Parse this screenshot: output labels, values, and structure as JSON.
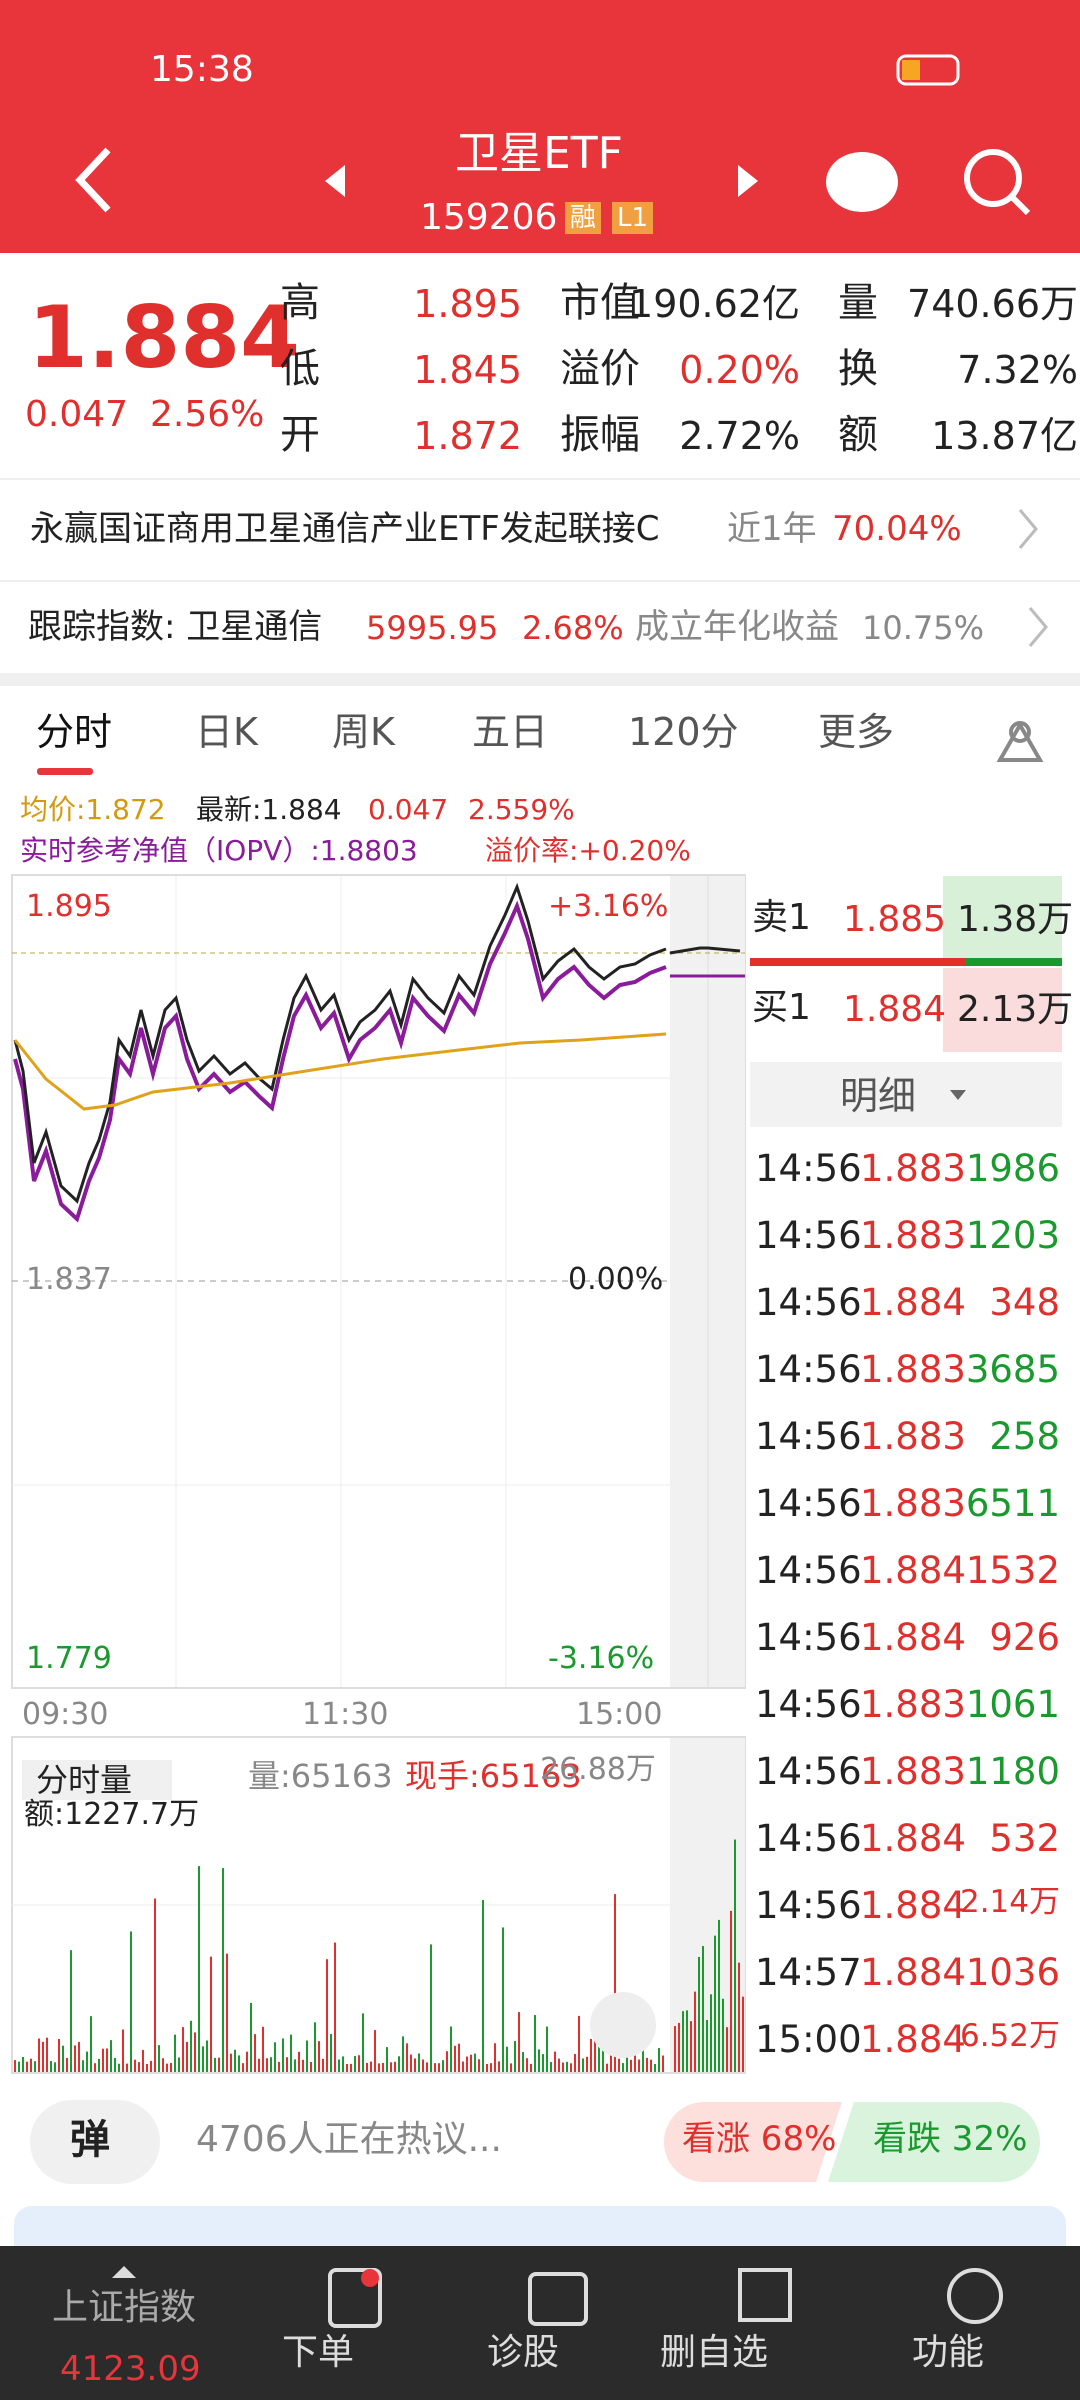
{
  "status_bar": {
    "time": "15:38"
  },
  "header": {
    "title": "卫星ETF",
    "code": "159206",
    "badges": [
      "融",
      "L1"
    ]
  },
  "quote": {
    "price": "1.884",
    "change": "0.047",
    "change_pct": "2.56%",
    "stats": [
      [
        "高",
        "1.895"
      ],
      [
        "低",
        "1.845"
      ],
      [
        "开",
        "1.872"
      ],
      [
        "市值",
        "190.62亿"
      ],
      [
        "溢价",
        "0.20%"
      ],
      [
        "振幅",
        "2.72%"
      ],
      [
        "量",
        "740.66万"
      ],
      [
        "换",
        "7.32%"
      ],
      [
        "额",
        "13.87亿"
      ]
    ]
  },
  "linked_fund": {
    "name": "永赢国证商用卫星通信产业ETF发起联接C",
    "period": "近1年",
    "return": "70.04%"
  },
  "tracking": {
    "label": "跟踪指数: 卫星通信",
    "value": "5995.95",
    "change": "2.68%",
    "annual_label": "成立年化收益",
    "annual": "10.75%"
  },
  "tabs": [
    "分时",
    "日K",
    "周K",
    "五日",
    "120分",
    "更多"
  ],
  "legend": {
    "avg": "均价:1.872",
    "latest": "最新:1.884",
    "change": "0.047",
    "pct": "2.559%",
    "iopv": "实时参考净值（IOPV）:1.8803",
    "premium": "溢价率:+0.20%"
  },
  "chart_labels": {
    "high": "1.895",
    "high_pct": "+3.16%",
    "mid": "1.837",
    "mid_pct": "0.00%",
    "low": "1.779",
    "low_pct": "-3.16%",
    "times": [
      "09:30",
      "11:30",
      "15:00"
    ]
  },
  "volume_panel": {
    "title": "分时量",
    "volume": "量:65163",
    "hand": "现手:65163",
    "max": "26.88万",
    "amount": "额:1227.7万"
  },
  "order_book": {
    "ask": [
      "卖1",
      "1.885",
      "1.38万"
    ],
    "bid": [
      "买1",
      "1.884",
      "2.13万"
    ],
    "detail": "明细"
  },
  "trades": [
    [
      "14:56",
      "1.883",
      "1986"
    ],
    [
      "14:56",
      "1.883",
      "1203"
    ],
    [
      "14:56",
      "1.884",
      "348"
    ],
    [
      "14:56",
      "1.883",
      "3685"
    ],
    [
      "14:56",
      "1.883",
      "258"
    ],
    [
      "14:56",
      "1.883",
      "6511"
    ],
    [
      "14:56",
      "1.884",
      "1532"
    ],
    [
      "14:56",
      "1.884",
      "926"
    ],
    [
      "14:56",
      "1.883",
      "1061"
    ],
    [
      "14:56",
      "1.883",
      "1180"
    ],
    [
      "14:56",
      "1.884",
      "532"
    ],
    [
      "14:56",
      "1.884",
      "2.14万"
    ],
    [
      "14:57",
      "1.884",
      "1036"
    ],
    [
      "15:00",
      "1.884",
      "6.52万"
    ]
  ],
  "discussion": {
    "button": "弹",
    "text": "4706人正在热议...",
    "bull": "看涨 68%",
    "bear": "看跌 32%"
  },
  "nav": {
    "index_name": "上证指数",
    "index_value": "4123.09",
    "items": [
      "下单",
      "诊股",
      "删自选",
      "功能"
    ]
  }
}
